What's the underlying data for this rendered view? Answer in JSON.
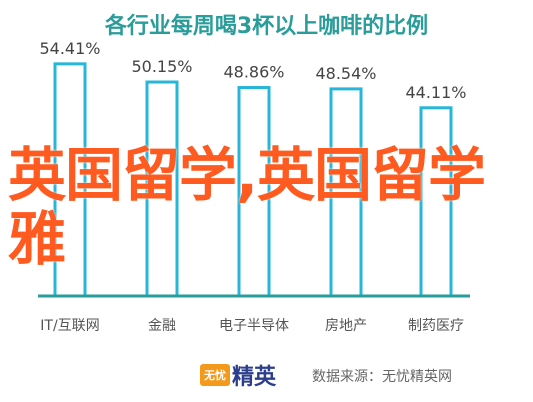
{
  "title": "各行业每周喝3杯以上咖啡的比例",
  "watermark": "英国留学,英国留学雅",
  "footer": {
    "logo_badge": "无忧",
    "logo_text": "精英",
    "source": "数据来源：无忧精英网"
  },
  "colors": {
    "title": "#2a9d9a",
    "bar_border": "#27b6d8",
    "axis": "#2a9d9a",
    "watermark": "#ff5a1f"
  },
  "chart_data": {
    "type": "bar",
    "title": "各行业每周喝3杯以上咖啡的比例",
    "categories": [
      "IT/互联网",
      "金融",
      "电子半导体",
      "房地产",
      "制药医疗"
    ],
    "values": [
      54.41,
      50.15,
      48.86,
      48.54,
      44.11
    ],
    "value_labels": [
      "54.41%",
      "50.15%",
      "48.86%",
      "48.54%",
      "44.11%"
    ],
    "ylim": [
      0,
      60
    ],
    "grid": false,
    "legend": "none"
  }
}
